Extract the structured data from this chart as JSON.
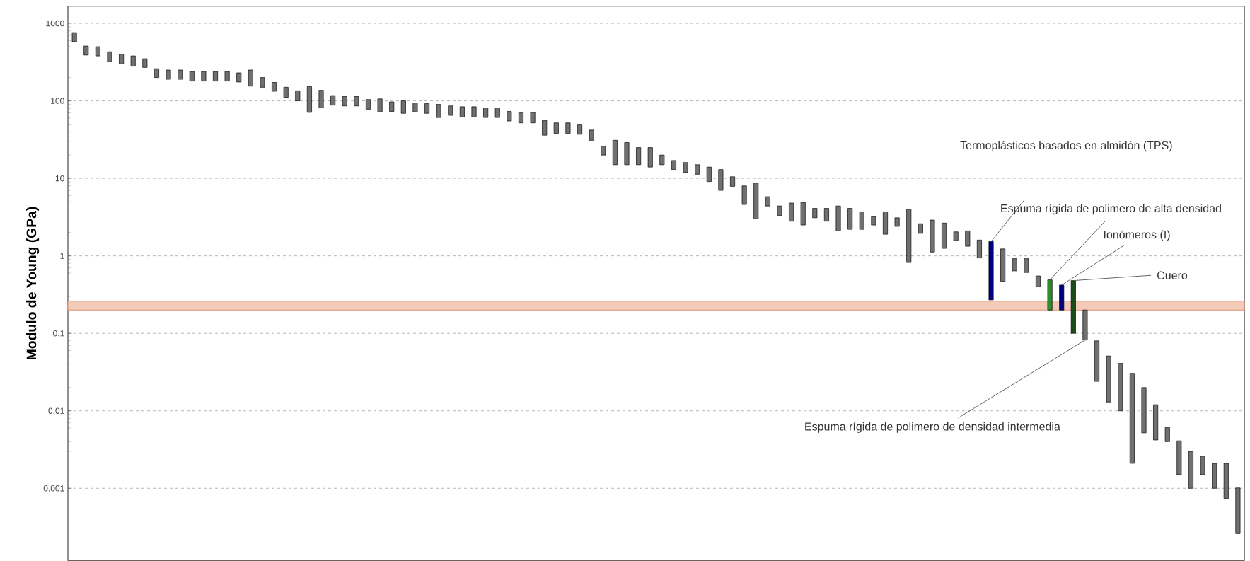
{
  "chart_data": {
    "type": "bar",
    "ylabel": "Modulo de Young (GPa)",
    "log": true,
    "grid": "y",
    "tick_labels": "y",
    "ylim": [
      0.000117,
      1670
    ],
    "yticks": [
      0.001,
      0.01,
      0.1,
      1,
      10,
      100,
      1000
    ],
    "categories": [
      null,
      null,
      null,
      null,
      null,
      null,
      null,
      null,
      null,
      null,
      null,
      null,
      null,
      null,
      null,
      null,
      null,
      null,
      null,
      null,
      null,
      null,
      null,
      null,
      null,
      null,
      null,
      null,
      null,
      null,
      null,
      null,
      null,
      null,
      null,
      null,
      null,
      null,
      null,
      null,
      null,
      null,
      null,
      null,
      null,
      null,
      null,
      null,
      null,
      null,
      null,
      null,
      null,
      null,
      null,
      null,
      null,
      null,
      null,
      null,
      null,
      null,
      null,
      null,
      null,
      null,
      null,
      null,
      null,
      null,
      null,
      null,
      null,
      null,
      null,
      null,
      null,
      null,
      null,
      null,
      null,
      null,
      null,
      null,
      null,
      null,
      null,
      null,
      null,
      null,
      null,
      null,
      null,
      null,
      null,
      null,
      null,
      null,
      null,
      null
    ],
    "base": [
      580,
      390,
      380,
      320,
      300,
      280,
      270,
      200,
      190,
      190,
      180,
      180,
      180,
      180,
      175,
      155,
      150,
      133,
      111,
      100,
      71,
      81,
      88,
      86,
      86,
      78,
      72,
      73,
      69,
      72,
      69,
      61,
      65,
      62,
      62,
      61,
      61,
      55,
      52,
      52,
      36,
      38,
      38,
      37,
      31,
      20,
      15,
      15,
      15,
      14,
      15,
      13,
      12,
      11.3,
      9.1,
      7,
      7.9,
      4.6,
      3,
      4.4,
      3.3,
      2.8,
      2.5,
      3.1,
      2.8,
      2.1,
      2.2,
      2.2,
      2.5,
      1.9,
      2.4,
      0.82,
      1.95,
      1.12,
      1.25,
      1.57,
      1.33,
      0.94,
      0.27,
      0.47,
      0.64,
      0.61,
      0.4,
      0.2,
      0.2,
      0.1,
      0.082,
      0.024,
      0.013,
      0.01,
      0.0021,
      0.0052,
      0.0042,
      0.004,
      0.0015,
      0.001,
      0.0015,
      0.001,
      0.00074,
      0.00026
    ],
    "values": [
      180,
      120,
      120,
      110,
      100,
      100,
      80,
      60,
      60,
      60,
      60,
      60,
      60,
      60,
      55,
      95,
      50,
      40,
      39,
      35,
      82,
      56,
      29,
      28,
      28,
      26,
      34,
      24,
      31,
      22,
      23,
      29,
      21,
      22,
      22,
      20,
      20,
      18,
      19,
      19,
      20,
      14,
      14,
      13,
      11,
      6,
      16,
      14,
      10,
      11,
      5,
      4,
      4,
      3.7,
      4.9,
      6,
      2.6,
      3.4,
      5.7,
      1.4,
      1.1,
      2,
      2.4,
      1,
      1.3,
      2.3,
      1.9,
      1.5,
      0.7,
      1.8,
      0.7,
      3.18,
      0.65,
      1.78,
      1.4,
      0.47,
      0.77,
      0.66,
      1.26,
      0.76,
      0.28,
      0.31,
      0.15,
      0.29,
      0.22,
      0.38,
      0.118,
      0.056,
      0.038,
      0.031,
      0.0284,
      0.0148,
      0.0078,
      0.0021,
      0.0026,
      0.002,
      0.0011,
      0.0011,
      0.00136,
      0.00075
    ],
    "colors": [
      "#707070",
      "#707070",
      "#707070",
      "#707070",
      "#707070",
      "#707070",
      "#707070",
      "#707070",
      "#707070",
      "#707070",
      "#707070",
      "#707070",
      "#707070",
      "#707070",
      "#707070",
      "#707070",
      "#707070",
      "#707070",
      "#707070",
      "#707070",
      "#707070",
      "#707070",
      "#707070",
      "#707070",
      "#707070",
      "#707070",
      "#707070",
      "#707070",
      "#707070",
      "#707070",
      "#707070",
      "#707070",
      "#707070",
      "#707070",
      "#707070",
      "#707070",
      "#707070",
      "#707070",
      "#707070",
      "#707070",
      "#707070",
      "#707070",
      "#707070",
      "#707070",
      "#707070",
      "#707070",
      "#707070",
      "#707070",
      "#707070",
      "#707070",
      "#707070",
      "#707070",
      "#707070",
      "#707070",
      "#707070",
      "#707070",
      "#707070",
      "#707070",
      "#707070",
      "#707070",
      "#707070",
      "#707070",
      "#707070",
      "#707070",
      "#707070",
      "#707070",
      "#707070",
      "#707070",
      "#707070",
      "#707070",
      "#707070",
      "#707070",
      "#707070",
      "#707070",
      "#707070",
      "#707070",
      "#707070",
      "#707070",
      "#000080",
      "#707070",
      "#707070",
      "#707070",
      "#707070",
      "#2e8b2e",
      "#000080",
      "#1a4d1a",
      "#707070",
      "#707070",
      "#707070",
      "#707070",
      "#707070",
      "#707070",
      "#707070",
      "#707070",
      "#707070",
      "#707070",
      "#707070",
      "#707070",
      "#707070",
      "#707070"
    ],
    "bands": [
      {
        "axis": "y",
        "from": 0.2,
        "to": 0.26,
        "color": "#f4cbb8"
      }
    ],
    "annotations": [
      "Termoplásticos basados en almidón (TPS)",
      "Espuma rígida de polimero de alta densidad",
      "Ionómeros (I)",
      "Cuero",
      "Espuma rígida de polimero de densidad intermedia"
    ]
  }
}
